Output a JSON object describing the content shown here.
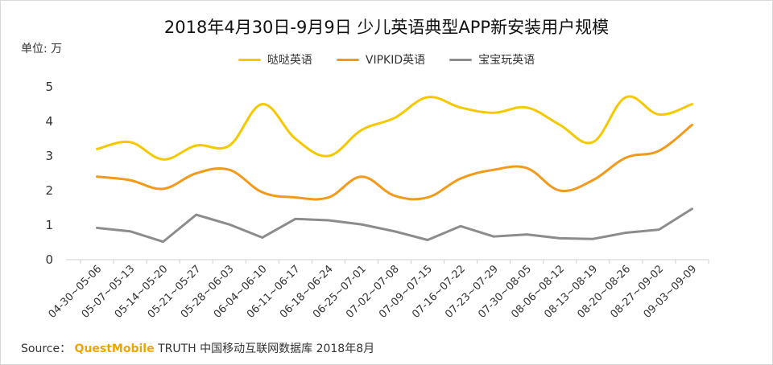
{
  "header": {
    "title": "2018年4月30日-9月9日 少儿英语典型APP新安装用户规模"
  },
  "unit_label": "单位: 万",
  "source": {
    "label": "Source：",
    "brand": "QuestMobile",
    "text": "TRUTH 中国移动互联网数据库 2018年8月"
  },
  "colors": {
    "series": [
      "#f5c800",
      "#f39a1a",
      "#8c8c8c"
    ],
    "axis": "#d0d0d0",
    "text": "#333333"
  },
  "chart_data": {
    "type": "line",
    "title": "2018年4月30日-9月9日 少儿英语典型APP新安装用户规模",
    "ylabel": "单位: 万",
    "xlabel": "",
    "ylim": [
      0,
      5
    ],
    "yticks": [
      0,
      1,
      2,
      3,
      4,
      5
    ],
    "grid": false,
    "legend_position": "top",
    "smooth": [
      true,
      true,
      false
    ],
    "categories": [
      "04-30~05-06",
      "05-07~05-13",
      "05-14~05-20",
      "05-21~05-27",
      "05-28~06-03",
      "06-04~06-10",
      "06-11~06-17",
      "06-18~06-24",
      "06-25~07-01",
      "07-02~07-08",
      "07-09~07-15",
      "07-16~07-22",
      "07-23~07-29",
      "07-30~08-05",
      "08-06~08-12",
      "08-13~08-19",
      "08-20~08-26",
      "08-27~09-02",
      "09-03~09-09"
    ],
    "series": [
      {
        "name": "哒哒英语",
        "values": [
          3.2,
          3.4,
          2.9,
          3.3,
          3.3,
          4.5,
          3.5,
          3.0,
          3.75,
          4.1,
          4.7,
          4.4,
          4.25,
          4.4,
          3.9,
          3.4,
          4.7,
          4.2,
          4.5
        ]
      },
      {
        "name": "VIPKID英语",
        "values": [
          2.4,
          2.3,
          2.05,
          2.5,
          2.6,
          1.95,
          1.8,
          1.8,
          2.4,
          1.85,
          1.8,
          2.35,
          2.6,
          2.65,
          2.0,
          2.3,
          2.95,
          3.15,
          3.9
        ]
      },
      {
        "name": "宝宝玩英语",
        "values": [
          0.92,
          0.82,
          0.52,
          1.3,
          1.02,
          0.64,
          1.18,
          1.14,
          1.02,
          0.82,
          0.57,
          0.97,
          0.67,
          0.73,
          0.62,
          0.6,
          0.78,
          0.87,
          1.47
        ]
      }
    ]
  }
}
